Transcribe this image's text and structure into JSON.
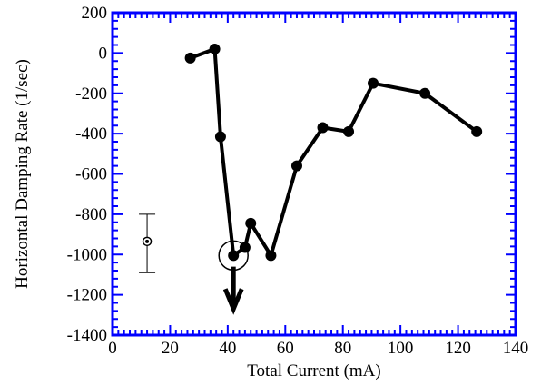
{
  "chart_data": {
    "type": "line",
    "xlabel": "Total Current (mA)",
    "ylabel": "Horizontal Damping Rate (1/sec)",
    "xlim": [
      0,
      140
    ],
    "ylim": [
      -1400,
      200
    ],
    "x_ticks": [
      0,
      20,
      40,
      60,
      80,
      100,
      120,
      140
    ],
    "y_ticks": [
      -1400,
      -1200,
      -1000,
      -800,
      -600,
      -400,
      -200,
      0,
      200
    ],
    "x_tick_labels": [
      "0",
      "20",
      "40",
      "60",
      "80",
      "100",
      "120",
      "140"
    ],
    "y_tick_labels": [
      "-1400",
      "-1200",
      "-1000",
      "-800",
      "-600",
      "-400",
      "-200",
      "0",
      "200"
    ],
    "grid": false,
    "colors": {
      "frame": "#0000ff",
      "series": "#000000"
    },
    "series": [
      {
        "x": [
          27,
          35.5,
          37.5,
          42,
          46,
          48,
          55,
          64,
          73,
          82,
          90.5,
          108.5,
          126.5
        ],
        "y": [
          -25,
          20,
          -415,
          -1005,
          -965,
          -845,
          -1005,
          -560,
          -370,
          -390,
          -150,
          -200,
          -390
        ]
      }
    ],
    "annotations": {
      "highlight_circle": {
        "x": 42,
        "y": -1005
      },
      "arrow": {
        "x": 42,
        "y_from": -1060,
        "y_to": -1270
      },
      "error_bar": {
        "x": 12,
        "y": -935,
        "low": -1090,
        "high": -800
      }
    }
  }
}
